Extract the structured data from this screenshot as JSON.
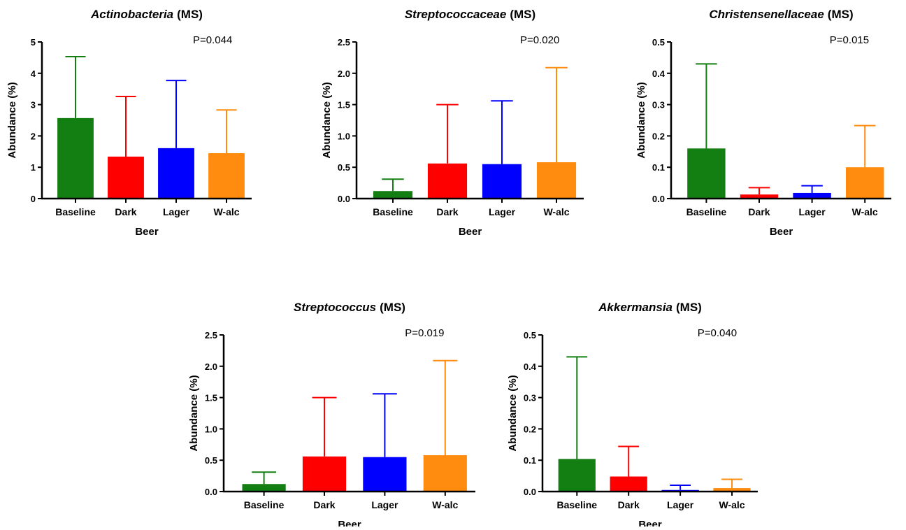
{
  "figure": {
    "colors": {
      "Baseline": "#137f12",
      "Dark": "#ff0000",
      "Lager": "#0000ff",
      "W-alc": "#ff8c0f",
      "axis": "#000000"
    }
  },
  "chart_data": [
    {
      "type": "bar",
      "title_italic": "Actinobacteria",
      "title_suffix": "(MS)",
      "pvalue": "P=0.044",
      "xlabel": "Beer",
      "ylabel": "Abundance (%)",
      "ylim": [
        0,
        5
      ],
      "yticks": [
        "0",
        "1",
        "2",
        "3",
        "4",
        "5"
      ],
      "categories": [
        "Baseline",
        "Dark",
        "Lager",
        "W-alc"
      ],
      "values": [
        2.57,
        1.34,
        1.61,
        1.45
      ],
      "error_upper": [
        4.53,
        3.26,
        3.77,
        2.83
      ]
    },
    {
      "type": "bar",
      "title_italic": "Streptococcaceae",
      "title_suffix": "(MS)",
      "pvalue": "P=0.020",
      "xlabel": "Beer",
      "ylabel": "Abundance (%)",
      "ylim": [
        0,
        2.5
      ],
      "yticks": [
        "0.0",
        "0.5",
        "1.0",
        "1.5",
        "2.0",
        "2.5"
      ],
      "categories": [
        "Baseline",
        "Dark",
        "Lager",
        "W-alc"
      ],
      "values": [
        0.12,
        0.56,
        0.55,
        0.58
      ],
      "error_upper": [
        0.31,
        1.5,
        1.56,
        2.09
      ]
    },
    {
      "type": "bar",
      "title_italic": "Christensenellaceae",
      "title_suffix": "(MS)",
      "pvalue": "P=0.015",
      "xlabel": "Beer",
      "ylabel": "Abundance (%)",
      "ylim": [
        0,
        0.5
      ],
      "yticks": [
        "0.0",
        "0.1",
        "0.2",
        "0.3",
        "0.4",
        "0.5"
      ],
      "categories": [
        "Baseline",
        "Dark",
        "Lager",
        "W-alc"
      ],
      "values": [
        0.16,
        0.013,
        0.018,
        0.1
      ],
      "error_upper": [
        0.43,
        0.035,
        0.041,
        0.233
      ]
    },
    {
      "type": "bar",
      "title_italic": "Streptococcus",
      "title_suffix": "(MS)",
      "pvalue": "P=0.019",
      "xlabel": "Beer",
      "ylabel": "Abundance (%)",
      "ylim": [
        0,
        2.5
      ],
      "yticks": [
        "0.0",
        "0.5",
        "1.0",
        "1.5",
        "2.0",
        "2.5"
      ],
      "categories": [
        "Baseline",
        "Dark",
        "Lager",
        "W-alc"
      ],
      "values": [
        0.12,
        0.56,
        0.55,
        0.58
      ],
      "error_upper": [
        0.31,
        1.5,
        1.56,
        2.09
      ]
    },
    {
      "type": "bar",
      "title_italic": "Akkermansia",
      "title_suffix": "(MS)",
      "pvalue": "P=0.040",
      "xlabel": "Beer",
      "ylabel": "Abundance (%)",
      "ylim": [
        0,
        0.5
      ],
      "yticks": [
        "0.0",
        "0.1",
        "0.2",
        "0.3",
        "0.4",
        "0.5"
      ],
      "categories": [
        "Baseline",
        "Dark",
        "Lager",
        "W-alc"
      ],
      "values": [
        0.104,
        0.048,
        0.005,
        0.011
      ],
      "error_upper": [
        0.43,
        0.144,
        0.02,
        0.039
      ]
    }
  ]
}
